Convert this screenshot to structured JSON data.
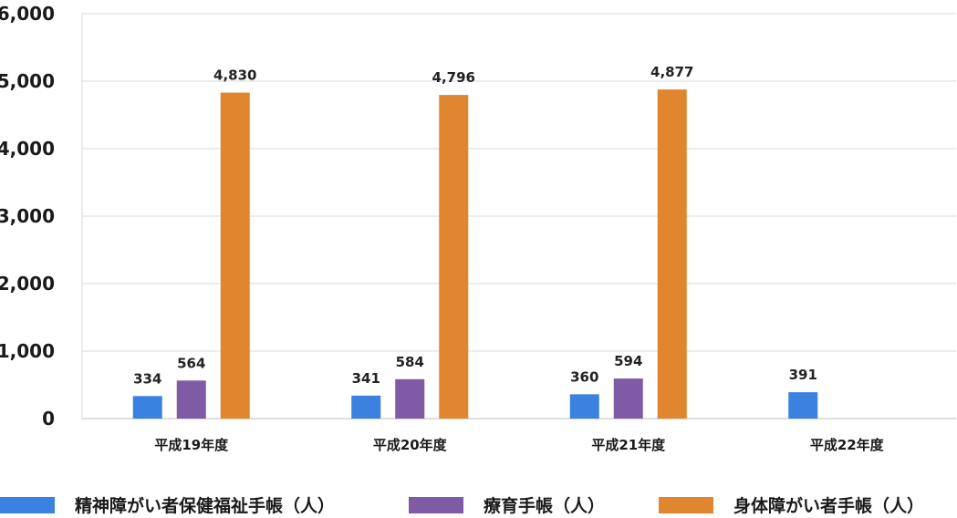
{
  "chart_data": {
    "type": "bar",
    "categories": [
      "平成19年度",
      "平成20年度",
      "平成21年度",
      "平成22年度"
    ],
    "series": [
      {
        "name": "精神障がい者保健福祉手帳（人）",
        "color": "#3b82e0",
        "values": [
          334,
          341,
          360,
          391
        ]
      },
      {
        "name": "療育手帳（人）",
        "color": "#7f5ba6",
        "values": [
          564,
          584,
          594,
          null
        ]
      },
      {
        "name": "身体障がい者手帳（人）",
        "color": "#e0862e",
        "values": [
          4830,
          4796,
          4877,
          null
        ]
      }
    ],
    "yticks": [
      "0",
      "1,000",
      "2,000",
      "3,000",
      "4,000",
      "5,000",
      "6,000"
    ],
    "data_labels": [
      [
        "334",
        "341",
        "360",
        "391"
      ],
      [
        "564",
        "584",
        "594",
        ""
      ],
      [
        "4,830",
        "4,796",
        "4,877",
        ""
      ]
    ],
    "ylim": [
      0,
      6000
    ],
    "grid": "horizontal",
    "legend_position": "bottom"
  }
}
